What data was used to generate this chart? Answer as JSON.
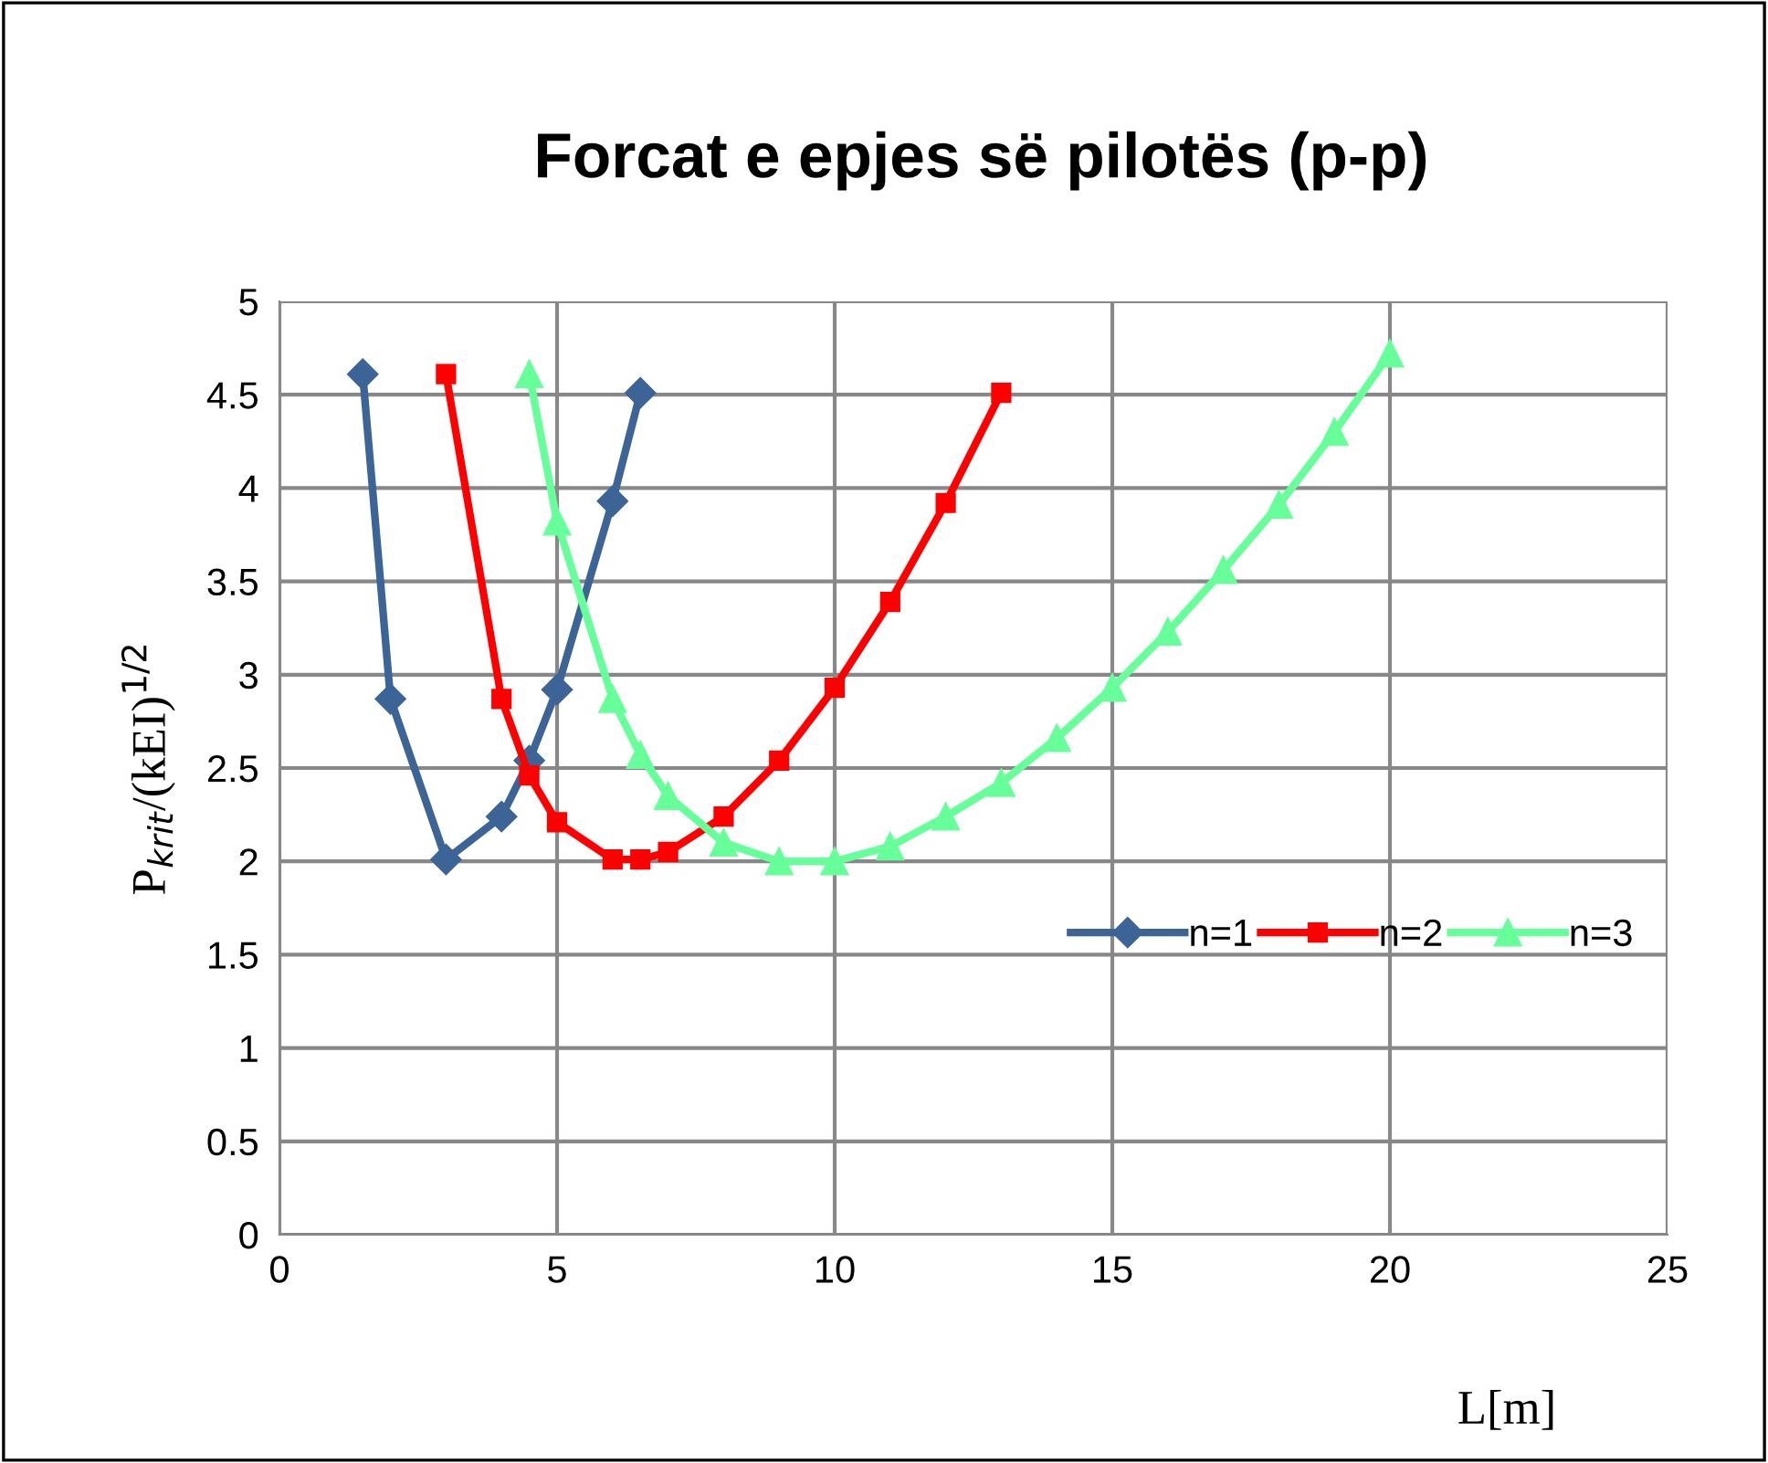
{
  "chart_data": {
    "type": "line",
    "title": "Forcat e epjes së pilotës (p-p)",
    "xlabel": "L[m]",
    "ylabel": "P$_{krit}$/(kEI)$^{1/2}$",
    "xlim": [
      0,
      25
    ],
    "xticks": [
      0,
      5,
      10,
      15,
      20,
      25
    ],
    "ylim": [
      0,
      5
    ],
    "yticks": [
      0,
      0.5,
      1,
      1.5,
      2,
      2.5,
      3,
      3.5,
      4,
      4.5,
      5
    ],
    "grid": true,
    "legend": "right",
    "line_style": "solid",
    "series": [
      {
        "name": "n=1",
        "color": "#3c6496",
        "marker": "diamond",
        "x": [
          1.5,
          2,
          3,
          4,
          4.5,
          5,
          6,
          6.5
        ],
        "values": [
          4.61,
          2.87,
          2.01,
          2.24,
          2.54,
          2.92,
          3.93,
          4.51
        ]
      },
      {
        "name": "n=2",
        "color": "#ff0000",
        "marker": "square",
        "x": [
          3,
          4,
          4.5,
          5,
          6,
          6.5,
          7,
          8,
          9,
          10,
          11,
          12,
          13
        ],
        "values": [
          4.61,
          2.87,
          2.46,
          2.21,
          2.01,
          2.01,
          2.05,
          2.24,
          2.54,
          2.93,
          3.39,
          3.92,
          4.51
        ]
      },
      {
        "name": "n=3",
        "color": "#66ff99",
        "marker": "triangle",
        "x": [
          4.5,
          5,
          6,
          6.5,
          7,
          8,
          9,
          10,
          11,
          12,
          13,
          14,
          15,
          16,
          17,
          18,
          19,
          20
        ],
        "values": [
          4.61,
          3.82,
          2.87,
          2.57,
          2.35,
          2.1,
          2.0,
          2.0,
          2.08,
          2.24,
          2.42,
          2.66,
          2.93,
          3.23,
          3.56,
          3.91,
          4.3,
          4.72
        ]
      }
    ]
  }
}
